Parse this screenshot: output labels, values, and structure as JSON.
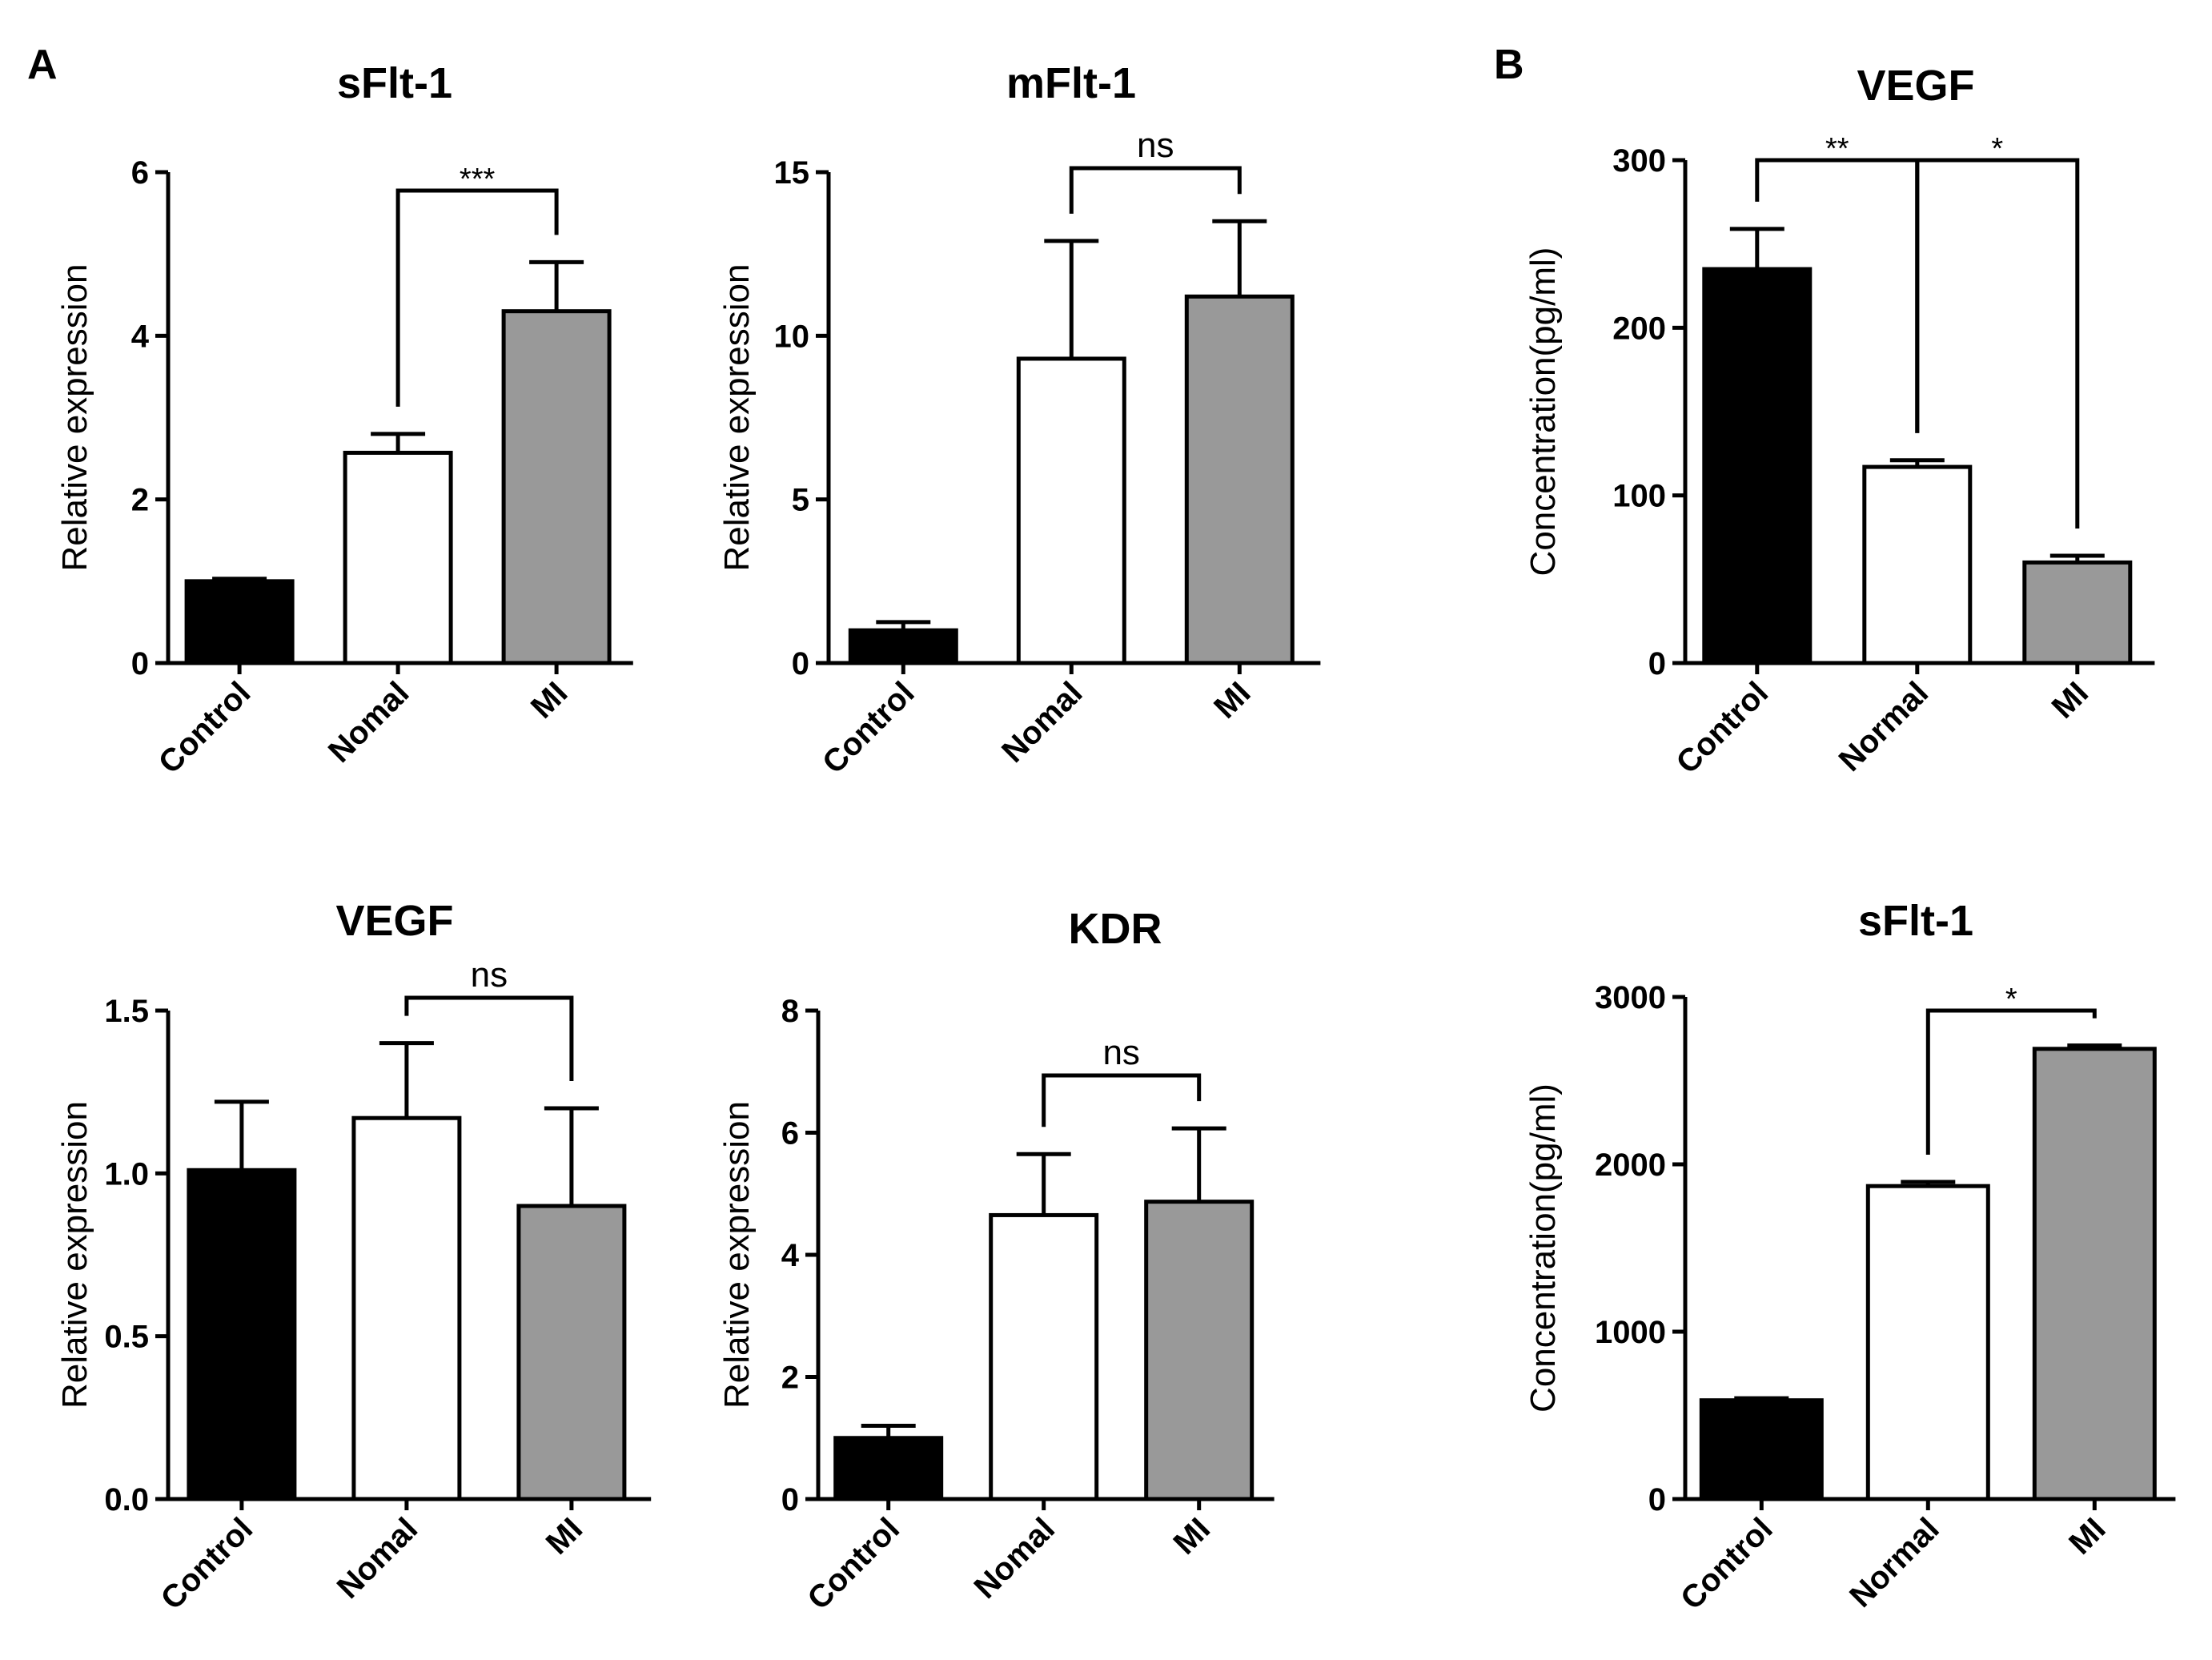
{
  "panel_labels": [
    "A",
    "B"
  ],
  "chart_data": [
    {
      "type": "bar",
      "title": "sFlt-1",
      "ylabel": "Relative expression",
      "categories": [
        "Control",
        "Nomal",
        "MI"
      ],
      "values": [
        1.0,
        2.57,
        4.3
      ],
      "errors": [
        0.03,
        0.23,
        0.6
      ],
      "colors": [
        "#000000",
        "#ffffff",
        "#999999"
      ],
      "ylim": [
        0,
        6
      ],
      "yticks": [
        "0",
        "2",
        "4",
        "6"
      ],
      "annotations": [
        {
          "from": 1,
          "to": 2,
          "label": "***"
        }
      ]
    },
    {
      "type": "bar",
      "title": "mFlt-1",
      "ylabel": "Relative expression",
      "categories": [
        "Control",
        "Nomal",
        "MI"
      ],
      "values": [
        1.0,
        9.3,
        11.2
      ],
      "errors": [
        0.25,
        3.6,
        2.3
      ],
      "colors": [
        "#000000",
        "#ffffff",
        "#999999"
      ],
      "ylim": [
        0,
        15
      ],
      "yticks": [
        "0",
        "5",
        "10",
        "15"
      ],
      "annotations": [
        {
          "from": 1,
          "to": 2,
          "label": "ns"
        }
      ]
    },
    {
      "type": "bar",
      "title": "VEGF",
      "ylabel": "Concentration(pg/ml)",
      "categories": [
        "Control",
        "Normal",
        "MI"
      ],
      "values": [
        235,
        117,
        60
      ],
      "errors": [
        24,
        4,
        4
      ],
      "colors": [
        "#000000",
        "#ffffff",
        "#999999"
      ],
      "ylim": [
        0,
        300
      ],
      "yticks": [
        "0",
        "100",
        "200",
        "300"
      ],
      "annotations": [
        {
          "from": 0,
          "to": 1,
          "label": "**"
        },
        {
          "from": 1,
          "to": 2,
          "label": "*"
        }
      ]
    },
    {
      "type": "bar",
      "title": "VEGF",
      "ylabel": "Relative expression",
      "categories": [
        "Control",
        "Nomal",
        "MI"
      ],
      "values": [
        1.01,
        1.17,
        0.9
      ],
      "errors": [
        0.21,
        0.23,
        0.3
      ],
      "colors": [
        "#000000",
        "#ffffff",
        "#999999"
      ],
      "ylim": [
        0,
        1.5
      ],
      "yticks": [
        "0.0",
        "0.5",
        "1.0",
        "1.5"
      ],
      "annotations": [
        {
          "from": 1,
          "to": 2,
          "label": "ns"
        }
      ]
    },
    {
      "type": "bar",
      "title": "KDR",
      "ylabel": "Relative expression",
      "categories": [
        "Control",
        "Nomal",
        "MI"
      ],
      "values": [
        1.0,
        4.65,
        4.87
      ],
      "errors": [
        0.2,
        1.0,
        1.2
      ],
      "colors": [
        "#000000",
        "#ffffff",
        "#999999"
      ],
      "ylim": [
        0,
        8
      ],
      "yticks": [
        "0",
        "2",
        "4",
        "6",
        "8"
      ],
      "annotations": [
        {
          "from": 1,
          "to": 2,
          "label": "ns"
        }
      ]
    },
    {
      "type": "bar",
      "title": "sFlt-1",
      "ylabel": "Concentration(pg/ml)",
      "categories": [
        "Control",
        "Normal",
        "MI"
      ],
      "values": [
        590,
        1870,
        2690
      ],
      "errors": [
        12,
        25,
        20
      ],
      "colors": [
        "#000000",
        "#ffffff",
        "#999999"
      ],
      "ylim": [
        0,
        3000
      ],
      "yticks": [
        "0",
        "1000",
        "2000",
        "3000"
      ],
      "annotations": [
        {
          "from": 1,
          "to": 2,
          "label": "*"
        }
      ]
    }
  ]
}
